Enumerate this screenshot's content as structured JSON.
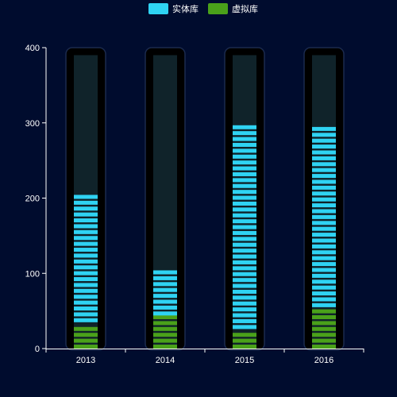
{
  "chart_data": {
    "type": "bar",
    "title": "",
    "xlabel": "",
    "ylabel": "",
    "categories": [
      "2013",
      "2014",
      "2015",
      "2016"
    ],
    "ylim": [
      0,
      400
    ],
    "yticks": [
      "0",
      "100",
      "200",
      "300",
      "400"
    ],
    "capacity": 390,
    "series": [
      {
        "name": "实体库",
        "color": "#2fd3f3",
        "values": [
          173,
          63,
          274,
          245
        ]
      },
      {
        "name": "虚拟库",
        "color": "#4aa11a",
        "values": [
          35,
          44,
          26,
          55
        ]
      }
    ],
    "legend": "top-center",
    "grid": false,
    "style": {
      "background": "#000c2e",
      "track_outer": "#000000",
      "track_border": "#1b2a4e",
      "track_inner": "#10232a",
      "axis_color": "#ffffff"
    }
  }
}
